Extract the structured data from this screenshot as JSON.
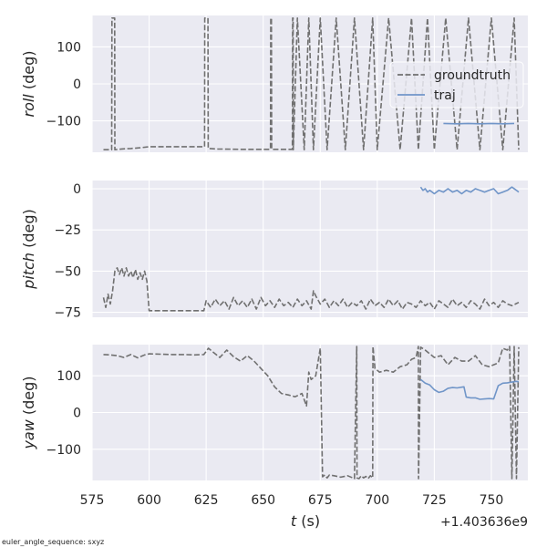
{
  "footnote": "euler_angle_sequence: sxyz",
  "colors": {
    "panel_bg": "#EAEAF2",
    "grid": "#FFFFFF",
    "groundtruth": "#707070",
    "traj": "#7095C8"
  },
  "chart_data": [
    {
      "type": "line",
      "ylabel_italic": "roll",
      "ylabel_unit": " (deg)",
      "xlim": [
        575,
        766
      ],
      "ylim": [
        -185,
        185
      ],
      "yticks": [
        100,
        0,
        -100
      ],
      "ytick_labels": [
        "100",
        "0",
        "−100"
      ],
      "xticks": [
        575,
        600,
        625,
        650,
        675,
        700,
        725,
        750
      ],
      "grid": true,
      "legend": {
        "placement": "upper-right",
        "entries": [
          {
            "label": "groundtruth",
            "style": "dashed",
            "color": "#707070"
          },
          {
            "label": "traj",
            "style": "solid",
            "color": "#7095C8"
          }
        ]
      },
      "series": [
        {
          "name": "groundtruth",
          "style": "dashed",
          "color": "#707070",
          "x": [
            580,
            583.6,
            583.7,
            584.9,
            585,
            588,
            592,
            596,
            600,
            605,
            612,
            618,
            624.3,
            624.4,
            625.8,
            625.9,
            630,
            640,
            650,
            653.2,
            653.3,
            653.6,
            653.7,
            660,
            662.8,
            662.9,
            663.1,
            663.2,
            665,
            668,
            670,
            672,
            675,
            678,
            682,
            686,
            690,
            694,
            698,
            700,
            705,
            710,
            715,
            718,
            722,
            725,
            730,
            735,
            740,
            745,
            750,
            755,
            760,
            762
          ],
          "y": [
            -178,
            -178,
            178,
            178,
            -178,
            -176,
            -175,
            -173,
            -170,
            -170,
            -170,
            -170,
            -170,
            178,
            178,
            -175,
            -176,
            -177,
            -177,
            -177,
            178,
            178,
            -177,
            -177,
            -177,
            178,
            178,
            -178,
            178,
            -178,
            178,
            -178,
            178,
            -178,
            178,
            -178,
            178,
            -178,
            178,
            -178,
            178,
            -178,
            178,
            -178,
            178,
            -178,
            178,
            -178,
            178,
            -178,
            178,
            -178,
            178,
            -178
          ]
        },
        {
          "name": "traj",
          "style": "solid",
          "color": "#7095C8",
          "x": [
            729,
            735,
            740,
            745,
            750,
            755,
            760
          ],
          "y": [
            -107,
            -108,
            -107,
            -108,
            -107,
            -108,
            -107
          ]
        }
      ]
    },
    {
      "type": "line",
      "ylabel_italic": "pitch",
      "ylabel_unit": " (deg)",
      "xlim": [
        575,
        766
      ],
      "ylim": [
        -78,
        5
      ],
      "yticks": [
        0,
        -25,
        -50,
        -75
      ],
      "ytick_labels": [
        "0",
        "−25",
        "−50",
        "−75"
      ],
      "xticks": [
        575,
        600,
        625,
        650,
        675,
        700,
        725,
        750
      ],
      "grid": true,
      "series": [
        {
          "name": "groundtruth",
          "style": "dashed",
          "color": "#707070",
          "x": [
            580,
            581,
            582,
            583,
            584,
            585,
            586,
            587,
            588,
            589,
            590,
            591,
            592,
            593,
            594,
            595,
            596,
            597,
            598,
            599,
            600,
            605,
            610,
            615,
            620,
            624,
            625,
            627,
            629,
            631,
            633,
            635,
            637,
            639,
            641,
            643,
            645,
            647,
            649,
            651,
            653,
            655,
            657,
            659,
            661,
            663,
            665,
            667,
            669,
            671,
            672,
            673,
            675,
            677,
            679,
            681,
            683,
            685,
            687,
            689,
            691,
            693,
            695,
            697,
            699,
            701,
            703,
            705,
            707,
            709,
            711,
            713,
            715,
            717,
            719,
            721,
            723,
            725,
            727,
            729,
            731,
            733,
            735,
            737,
            739,
            741,
            743,
            745,
            747,
            749,
            751,
            753,
            755,
            757,
            759,
            762
          ],
          "y": [
            -66,
            -72,
            -64,
            -70,
            -62,
            -50,
            -48,
            -52,
            -48,
            -53,
            -48,
            -53,
            -50,
            -54,
            -49,
            -55,
            -51,
            -55,
            -50,
            -56,
            -74,
            -74,
            -74,
            -74,
            -74,
            -74,
            -68,
            -72,
            -67,
            -71,
            -68,
            -73,
            -66,
            -71,
            -68,
            -72,
            -67,
            -73,
            -66,
            -71,
            -68,
            -72,
            -67,
            -71,
            -69,
            -72,
            -67,
            -71,
            -68,
            -73,
            -62,
            -65,
            -70,
            -67,
            -72,
            -68,
            -71,
            -67,
            -72,
            -69,
            -71,
            -68,
            -73,
            -67,
            -71,
            -69,
            -72,
            -67,
            -71,
            -68,
            -73,
            -69,
            -70,
            -72,
            -68,
            -71,
            -69,
            -73,
            -68,
            -70,
            -72,
            -67,
            -71,
            -69,
            -72,
            -68,
            -70,
            -73,
            -67,
            -71,
            -69,
            -72,
            -68,
            -70,
            -71,
            -69
          ]
        },
        {
          "name": "traj",
          "style": "solid",
          "color": "#7095C8",
          "x": [
            719,
            720,
            721,
            722,
            723,
            725,
            727,
            729,
            731,
            733,
            735,
            737,
            739,
            741,
            743,
            745,
            747,
            749,
            751,
            753,
            755,
            757,
            759,
            761,
            762
          ],
          "y": [
            1,
            -1,
            0,
            -2,
            -1,
            -3,
            -1,
            -2,
            0,
            -2,
            -1,
            -3,
            -1,
            -2,
            0,
            -1,
            -2,
            -1,
            0,
            -3,
            -2,
            -1,
            1,
            -1,
            -2
          ]
        }
      ]
    },
    {
      "type": "line",
      "ylabel_italic": "yaw",
      "ylabel_unit": " (deg)",
      "xlabel_italic": "t",
      "xlabel_unit": " (s)",
      "offset_label": "+1.403636e9",
      "xlim": [
        575,
        766
      ],
      "ylim": [
        -185,
        185
      ],
      "yticks": [
        100,
        0,
        -100
      ],
      "ytick_labels": [
        "100",
        "0",
        "−100"
      ],
      "xticks": [
        575,
        600,
        625,
        650,
        675,
        700,
        725,
        750
      ],
      "xtick_labels": [
        "575",
        "600",
        "625",
        "650",
        "675",
        "700",
        "725",
        "750"
      ],
      "grid": true,
      "series": [
        {
          "name": "groundtruth",
          "style": "dashed",
          "color": "#707070",
          "x": [
            580,
            583,
            586,
            589,
            592,
            595,
            598,
            600,
            605,
            610,
            615,
            620,
            624,
            626,
            628,
            631,
            634,
            637,
            640,
            643,
            646,
            649,
            652,
            655,
            658,
            661,
            664,
            667,
            669,
            670,
            671,
            673,
            675,
            676,
            677,
            678,
            679,
            681,
            684,
            687,
            690,
            691,
            691.1,
            692,
            693,
            694,
            695,
            696,
            697,
            698,
            698.1,
            699,
            701,
            704,
            707,
            710,
            713,
            715,
            717,
            718,
            718.1,
            719,
            721,
            723,
            725,
            728,
            731,
            734,
            737,
            740,
            743,
            746,
            749,
            751,
            753,
            755,
            757,
            758,
            759,
            760,
            761,
            762
          ],
          "y": [
            158,
            157,
            155,
            150,
            158,
            149,
            157,
            160,
            159,
            158,
            158,
            157,
            158,
            175,
            165,
            150,
            170,
            152,
            140,
            155,
            140,
            120,
            100,
            70,
            52,
            48,
            43,
            52,
            18,
            110,
            90,
            100,
            175,
            -175,
            -170,
            -178,
            -170,
            -172,
            -176,
            -172,
            -180,
            180,
            -178,
            -180,
            -172,
            -178,
            -174,
            -180,
            -172,
            -178,
            180,
            120,
            110,
            115,
            110,
            125,
            130,
            145,
            150,
            180,
            -180,
            178,
            170,
            160,
            150,
            155,
            130,
            150,
            140,
            140,
            155,
            130,
            125,
            130,
            135,
            175,
            170,
            180,
            -180,
            180,
            -180,
            178
          ]
        },
        {
          "name": "traj",
          "style": "solid",
          "color": "#7095C8",
          "x": [
            719,
            721,
            723,
            725,
            727,
            729,
            731,
            733,
            735,
            737,
            738,
            739,
            741,
            743,
            745,
            747,
            749,
            751,
            753,
            755,
            757,
            759,
            761,
            762
          ],
          "y": [
            90,
            80,
            75,
            62,
            55,
            58,
            66,
            68,
            67,
            69,
            70,
            42,
            40,
            40,
            36,
            37,
            38,
            37,
            73,
            80,
            81,
            83,
            85,
            84
          ]
        }
      ]
    }
  ]
}
